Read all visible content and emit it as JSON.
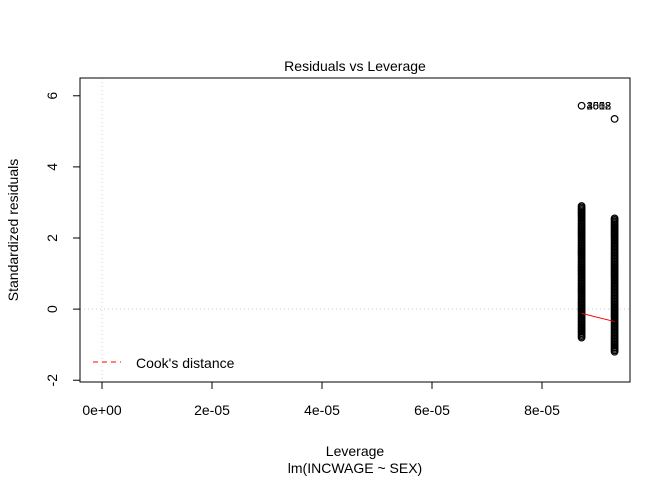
{
  "chart_data": {
    "type": "scatter",
    "title": "Residuals vs Leverage",
    "xlabel": "Leverage",
    "subtitle": "lm(INCWAGE ~ SEX)",
    "ylabel": "Standardized residuals",
    "xlim": [
      -4e-06,
      9.6e-05
    ],
    "ylim": [
      -2.05,
      6.5
    ],
    "x_ticks": [
      0,
      2e-05,
      4e-05,
      6e-05,
      8e-05
    ],
    "x_tick_labels": [
      "0e+00",
      "2e-05",
      "4e-05",
      "6e-05",
      "8e-05"
    ],
    "y_ticks": [
      -2,
      0,
      2,
      4,
      6
    ],
    "y_tick_labels": [
      "-2",
      "0",
      "2",
      "4",
      "6"
    ],
    "reference_lines": {
      "vertical_x": 0,
      "horizontal_y": 0,
      "style": "dotted",
      "color": "#cccccc"
    },
    "series": [
      {
        "type": "points",
        "marker": "open-circle",
        "color": "#000000",
        "columns": [
          {
            "x": 8.72e-05,
            "y_min": -0.8,
            "y_max": 2.9
          },
          {
            "x": 9.32e-05,
            "y_min": -1.2,
            "y_max": 2.55
          }
        ],
        "outliers": [
          {
            "x": 8.72e-05,
            "y": 5.72
          },
          {
            "x": 9.32e-05,
            "y": 5.35
          }
        ]
      },
      {
        "type": "smoother",
        "color": "#ff0000",
        "points": [
          {
            "x": 8.72e-05,
            "y": -0.12
          },
          {
            "x": 9.32e-05,
            "y": -0.35
          }
        ]
      }
    ],
    "point_labels": [
      {
        "x": 8.72e-05,
        "y": 5.72,
        "text": "3602"
      },
      {
        "x": 8.72e-05,
        "y": 5.72,
        "text": "2558"
      },
      {
        "x": 8.72e-05,
        "y": 5.72,
        "text": "4018"
      }
    ],
    "legend": {
      "position": "bottom-left",
      "entries": [
        {
          "label": "Cook's distance",
          "color": "#ff0000",
          "style": "dashed"
        }
      ]
    }
  }
}
